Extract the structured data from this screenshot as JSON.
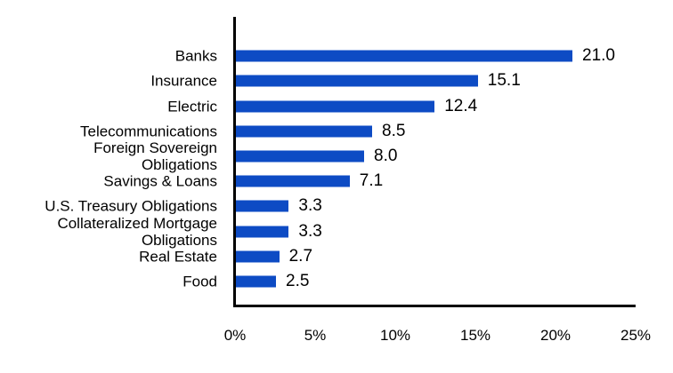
{
  "chart_data": {
    "type": "bar",
    "orientation": "horizontal",
    "title": "",
    "categories": [
      "Banks",
      "Insurance",
      "Electric",
      "Telecommunications",
      "Foreign Sovereign Obligations",
      "Savings & Loans",
      "U.S. Treasury Obligations",
      "Collateralized Mortgage Obligations",
      "Real Estate",
      "Food"
    ],
    "category_lines": [
      [
        "Banks"
      ],
      [
        "Insurance"
      ],
      [
        "Electric"
      ],
      [
        "Telecommunications"
      ],
      [
        "Foreign Sovereign",
        "Obligations"
      ],
      [
        "Savings & Loans"
      ],
      [
        "U.S. Treasury Obligations"
      ],
      [
        "Collateralized Mortgage",
        "Obligations"
      ],
      [
        "Real Estate"
      ],
      [
        "Food"
      ]
    ],
    "values": [
      21.0,
      15.1,
      12.4,
      8.5,
      8.0,
      7.1,
      3.3,
      3.3,
      2.7,
      2.5
    ],
    "value_labels": [
      "21.0",
      "15.1",
      "12.4",
      "8.5",
      "8.0",
      "7.1",
      "3.3",
      "3.3",
      "2.7",
      "2.5"
    ],
    "xlim": [
      0,
      25
    ],
    "x_tick_values": [
      0,
      5,
      10,
      15,
      20,
      25
    ],
    "x_tick_labels": [
      "0%",
      "5%",
      "10%",
      "15%",
      "20%",
      "25%"
    ],
    "unit": "percent",
    "bar_color": "#0d4bc4",
    "axis_color": "#000000",
    "text_color": "#000000",
    "grid": false,
    "legend": false
  }
}
